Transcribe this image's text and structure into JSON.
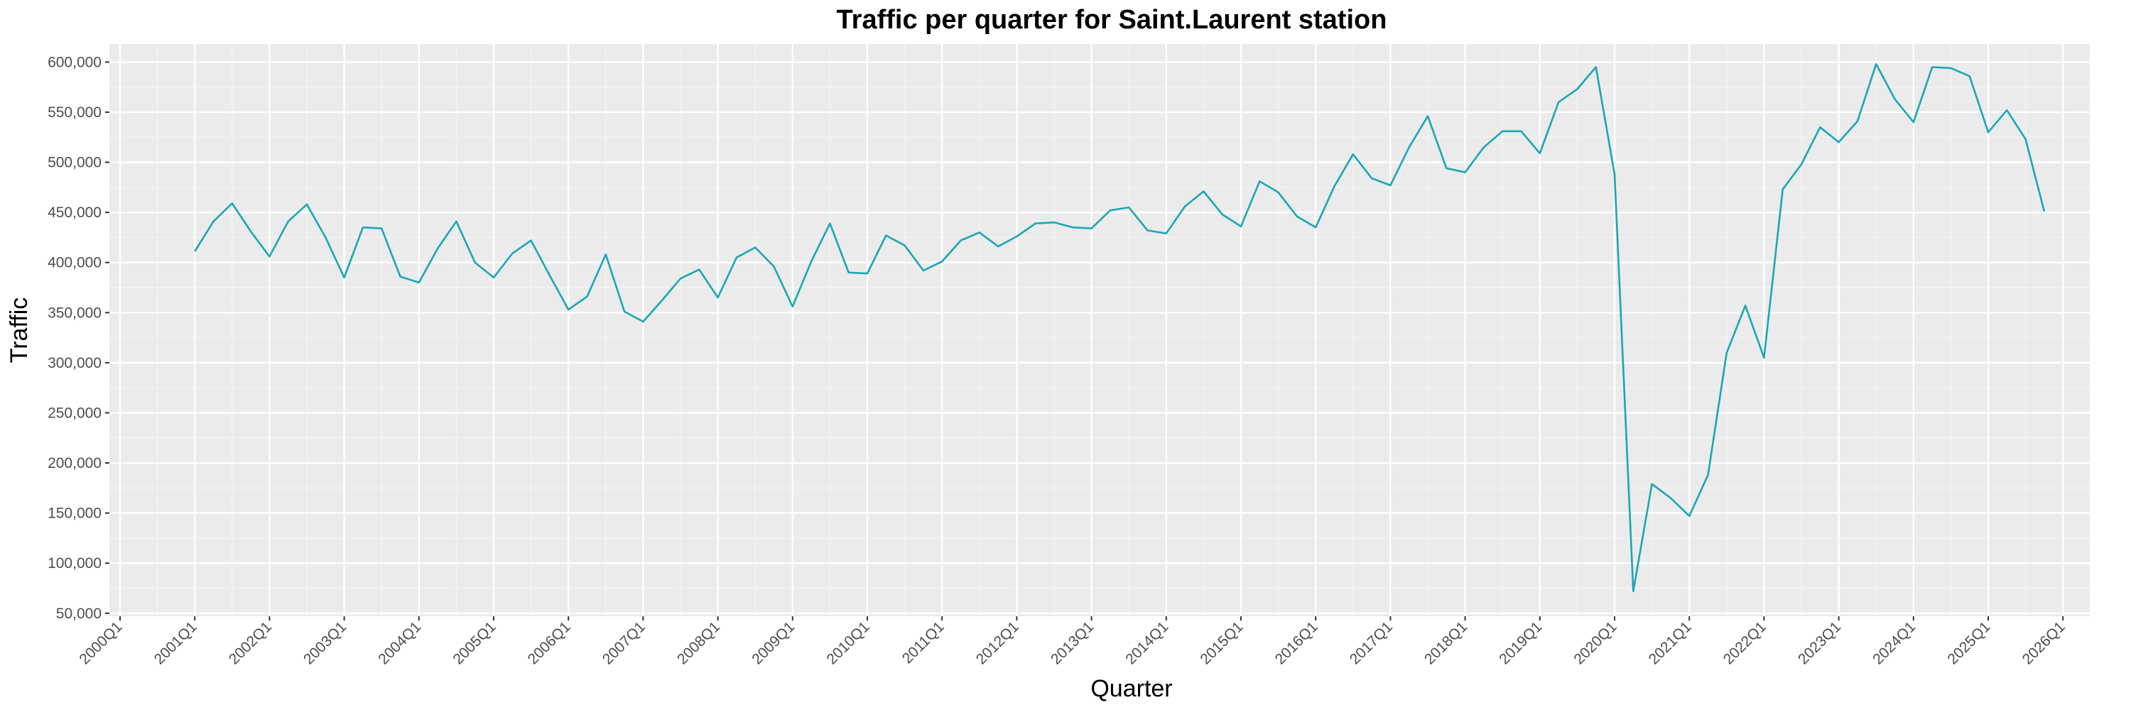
{
  "chart_data": {
    "type": "line",
    "title": "Traffic per quarter for Saint.Laurent station",
    "xlabel": "Quarter",
    "ylabel": "Traffic",
    "ylim": [
      47000,
      618000
    ],
    "grid": true,
    "legend": "none",
    "colors": {
      "line": "#1aa7b5",
      "panel": "#ebebeb",
      "grid_major": "#ffffff"
    },
    "x_ticks": [
      "2000Q1",
      "2001Q1",
      "2002Q1",
      "2003Q1",
      "2004Q1",
      "2005Q1",
      "2006Q1",
      "2007Q1",
      "2008Q1",
      "2009Q1",
      "2010Q1",
      "2011Q1",
      "2012Q1",
      "2013Q1",
      "2014Q1",
      "2015Q1",
      "2016Q1",
      "2017Q1",
      "2018Q1",
      "2019Q1",
      "2020Q1",
      "2021Q1",
      "2022Q1",
      "2023Q1",
      "2024Q1",
      "2025Q1",
      "2026Q1"
    ],
    "y_ticks": [
      {
        "value": 50000,
        "label": "50,000"
      },
      {
        "value": 100000,
        "label": "100,000"
      },
      {
        "value": 150000,
        "label": "150,000"
      },
      {
        "value": 200000,
        "label": "200,000"
      },
      {
        "value": 250000,
        "label": "250,000"
      },
      {
        "value": 300000,
        "label": "300,000"
      },
      {
        "value": 350000,
        "label": "350,000"
      },
      {
        "value": 400000,
        "label": "400,000"
      },
      {
        "value": 450000,
        "label": "450,000"
      },
      {
        "value": 500000,
        "label": "500,000"
      },
      {
        "value": 550000,
        "label": "550,000"
      },
      {
        "value": 600000,
        "label": "600,000"
      }
    ],
    "series": [
      {
        "start": "2001Q1",
        "values": [
          411000,
          441000,
          459000,
          431000,
          406000,
          441000,
          458000,
          425000,
          385000,
          435000,
          434000,
          386000,
          380000,
          414000,
          441000,
          400000,
          385000,
          409000,
          422000,
          387000,
          353000,
          366000,
          408000,
          351000,
          341000,
          362000,
          384000,
          393000,
          365000,
          405000,
          415000,
          396000,
          356000,
          401000,
          439000,
          390000,
          389000,
          427000,
          417000,
          392000,
          401000,
          422000,
          430000,
          416000,
          426000,
          439000,
          440000,
          435000,
          434000,
          452000,
          455000,
          432000,
          429000,
          456000,
          471000,
          448000,
          436000,
          481000,
          470000,
          446000,
          435000,
          476000,
          508000,
          484000,
          477000,
          515000,
          546000,
          494000,
          490000,
          515000,
          531000,
          531000,
          509000,
          560000,
          573000,
          595000,
          488000,
          72000,
          179000,
          165000,
          147000,
          188000,
          310000,
          357000,
          305000,
          473000,
          498000,
          535000,
          520000,
          541000,
          598000,
          563000,
          540000,
          595000,
          594000,
          586000,
          530000,
          552000,
          523000,
          451000
        ]
      }
    ]
  }
}
